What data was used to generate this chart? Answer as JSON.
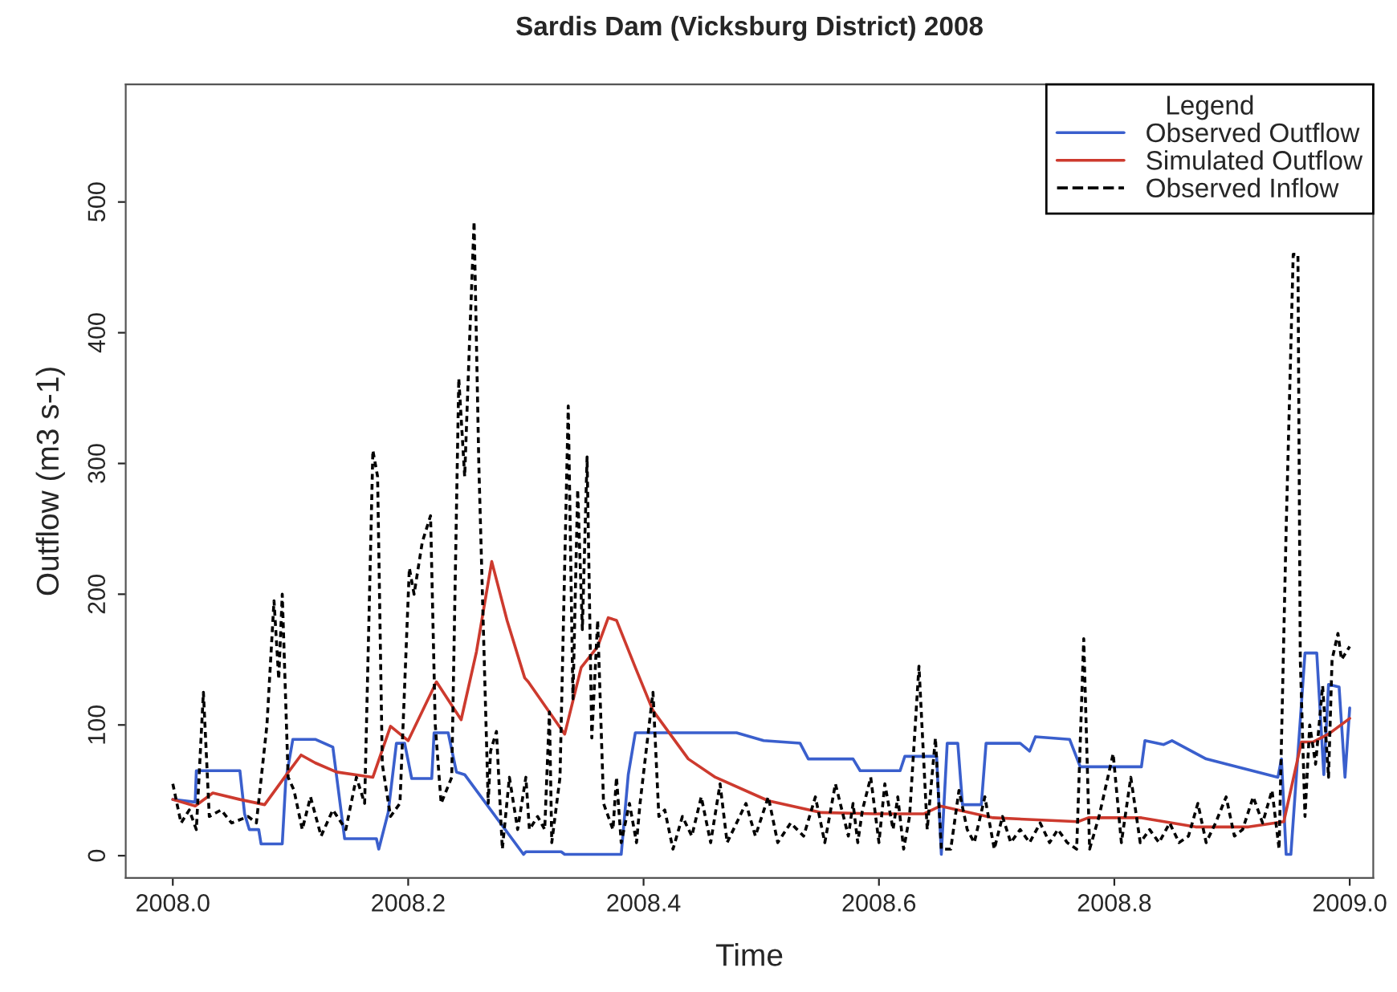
{
  "chart_data": {
    "type": "line",
    "title": "Sardis Dam (Vicksburg District) 2008",
    "xlabel": "Time",
    "ylabel": "Outflow (m3 s-1)",
    "legend_title": "Legend",
    "legend": "top right",
    "grid": false,
    "xlim": [
      2007.96,
      2009.02
    ],
    "ylim": [
      -17,
      590
    ],
    "xticks": [
      {
        "value": 2008.0,
        "label": "2008.0"
      },
      {
        "value": 2008.2,
        "label": "2008.2"
      },
      {
        "value": 2008.4,
        "label": "2008.4"
      },
      {
        "value": 2008.6,
        "label": "2008.6"
      },
      {
        "value": 2008.8,
        "label": "2008.8"
      },
      {
        "value": 2009.0,
        "label": "2009.0"
      }
    ],
    "yticks": [
      0,
      100,
      200,
      300,
      400,
      500
    ],
    "series": [
      {
        "name": "Observed Outflow",
        "color": "#3a5fcd",
        "line_style": "solid",
        "x": [
          2008.0,
          2008.019,
          2008.02,
          2008.057,
          2008.061,
          2008.065,
          2008.073,
          2008.075,
          2008.093,
          2008.096,
          2008.102,
          2008.121,
          2008.136,
          2008.146,
          2008.173,
          2008.175,
          2008.183,
          2008.19,
          2008.197,
          2008.203,
          2008.22,
          2008.222,
          2008.234,
          2008.241,
          2008.248,
          2008.298,
          2008.3,
          2008.33,
          2008.333,
          2008.381,
          2008.387,
          2008.393,
          2008.479,
          2008.502,
          2008.533,
          2008.54,
          2008.578,
          2008.584,
          2008.618,
          2008.622,
          2008.649,
          2008.653,
          2008.658,
          2008.667,
          2008.671,
          2008.687,
          2008.691,
          2008.72,
          2008.728,
          2008.733,
          2008.762,
          2008.771,
          2008.823,
          2008.826,
          2008.842,
          2008.849,
          2008.878,
          2008.939,
          2008.942,
          2008.946,
          2008.95,
          2008.962,
          2008.972,
          2008.978,
          2008.982,
          2008.991,
          2008.996,
          2009.0
        ],
        "values": [
          43,
          41,
          65,
          65,
          32,
          20,
          20,
          9,
          9,
          58,
          89,
          89,
          83,
          13,
          13,
          5,
          33,
          86,
          86,
          59,
          59,
          94,
          94,
          64,
          62,
          1,
          3,
          3,
          1,
          1,
          62,
          94,
          94,
          88,
          86,
          74,
          74,
          65,
          65,
          76,
          76,
          1,
          86,
          86,
          39,
          39,
          86,
          86,
          80,
          91,
          89,
          68,
          68,
          88,
          85,
          88,
          74,
          60,
          74,
          1,
          1,
          155,
          155,
          62,
          131,
          129,
          60,
          113
        ]
      },
      {
        "name": "Simulated Outflow",
        "color": "#cd3a2e",
        "line_style": "solid",
        "x": [
          2008.0,
          2008.019,
          2008.034,
          2008.057,
          2008.078,
          2008.095,
          2008.109,
          2008.121,
          2008.139,
          2008.17,
          2008.185,
          2008.2,
          2008.224,
          2008.245,
          2008.258,
          2008.271,
          2008.284,
          2008.299,
          2008.302,
          2008.333,
          2008.347,
          2008.361,
          2008.37,
          2008.377,
          2008.393,
          2008.408,
          2008.438,
          2008.461,
          2008.506,
          2008.551,
          2008.597,
          2008.638,
          2008.652,
          2008.697,
          2008.769,
          2008.778,
          2008.823,
          2008.869,
          2008.914,
          2008.944,
          2008.959,
          2008.969,
          2008.982,
          2009.0
        ],
        "values": [
          43,
          38,
          48,
          43,
          39,
          60,
          77,
          71,
          64,
          60,
          99,
          88,
          133,
          104,
          156,
          225,
          180,
          136,
          133,
          93,
          144,
          160,
          182,
          180,
          144,
          111,
          74,
          60,
          42,
          33,
          32,
          32,
          38,
          29,
          26,
          29,
          29,
          22,
          22,
          26,
          87,
          87,
          93,
          105
        ]
      },
      {
        "name": "Observed Inflow",
        "color": "#000000",
        "line_style": "dotted",
        "x": [
          2008.0,
          2008.007,
          2008.014,
          2008.02,
          2008.026,
          2008.031,
          2008.041,
          2008.05,
          2008.064,
          2008.071,
          2008.08,
          2008.086,
          2008.09,
          2008.093,
          2008.098,
          2008.103,
          2008.11,
          2008.117,
          2008.126,
          2008.136,
          2008.147,
          2008.156,
          2008.163,
          2008.17,
          2008.174,
          2008.178,
          2008.185,
          2008.193,
          2008.201,
          2008.205,
          2008.212,
          2008.219,
          2008.223,
          2008.228,
          2008.237,
          2008.243,
          2008.248,
          2008.252,
          2008.256,
          2008.26,
          2008.268,
          2008.27,
          2008.275,
          2008.28,
          2008.286,
          2008.293,
          2008.3,
          2008.303,
          2008.31,
          2008.316,
          2008.32,
          2008.322,
          2008.329,
          2008.336,
          2008.34,
          2008.344,
          2008.348,
          2008.352,
          2008.356,
          2008.361,
          2008.366,
          2008.37,
          2008.374,
          2008.377,
          2008.381,
          2008.388,
          2008.394,
          2008.397,
          2008.408,
          2008.413,
          2008.418,
          2008.425,
          2008.433,
          2008.441,
          2008.449,
          2008.457,
          2008.465,
          2008.471,
          2008.479,
          2008.487,
          2008.495,
          2008.506,
          2008.514,
          2008.525,
          2008.536,
          2008.546,
          2008.554,
          2008.563,
          2008.574,
          2008.578,
          2008.582,
          2008.586,
          2008.593,
          2008.6,
          2008.605,
          2008.612,
          2008.616,
          2008.621,
          2008.626,
          2008.634,
          2008.641,
          2008.648,
          2008.653,
          2008.661,
          2008.668,
          2008.675,
          2008.681,
          2008.69,
          2008.698,
          2008.705,
          2008.712,
          2008.72,
          2008.728,
          2008.737,
          2008.745,
          2008.752,
          2008.76,
          2008.768,
          2008.774,
          2008.779,
          2008.787,
          2008.799,
          2008.806,
          2008.814,
          2008.822,
          2008.83,
          2008.838,
          2008.847,
          2008.855,
          2008.863,
          2008.871,
          2008.878,
          2008.886,
          2008.895,
          2008.902,
          2008.909,
          2008.918,
          2008.926,
          2008.934,
          2008.94,
          2008.946,
          2008.952,
          2008.956,
          2008.958,
          2008.962,
          2008.966,
          2008.971,
          2008.977,
          2008.982,
          2008.985,
          2008.99,
          2008.993,
          2009.0
        ],
        "values": [
          55,
          25,
          35,
          20,
          125,
          30,
          35,
          25,
          30,
          25,
          100,
          195,
          135,
          200,
          60,
          50,
          20,
          45,
          15,
          35,
          20,
          60,
          40,
          310,
          290,
          70,
          30,
          40,
          220,
          200,
          240,
          260,
          100,
          40,
          60,
          365,
          290,
          390,
          485,
          300,
          40,
          80,
          95,
          5,
          60,
          20,
          60,
          20,
          30,
          20,
          110,
          10,
          60,
          344,
          120,
          280,
          173,
          305,
          90,
          180,
          40,
          30,
          20,
          60,
          10,
          40,
          10,
          40,
          125,
          30,
          35,
          5,
          30,
          15,
          45,
          10,
          55,
          10,
          25,
          40,
          15,
          45,
          10,
          25,
          15,
          45,
          10,
          55,
          15,
          40,
          10,
          35,
          60,
          10,
          55,
          20,
          45,
          5,
          30,
          145,
          20,
          90,
          5,
          5,
          50,
          20,
          10,
          45,
          5,
          30,
          10,
          20,
          10,
          25,
          10,
          20,
          10,
          5,
          166,
          5,
          30,
          78,
          10,
          60,
          10,
          20,
          10,
          25,
          10,
          15,
          40,
          10,
          25,
          45,
          15,
          20,
          45,
          25,
          50,
          5,
          250,
          460,
          460,
          150,
          30,
          100,
          70,
          130,
          60,
          150,
          170,
          150,
          160
        ]
      }
    ]
  }
}
